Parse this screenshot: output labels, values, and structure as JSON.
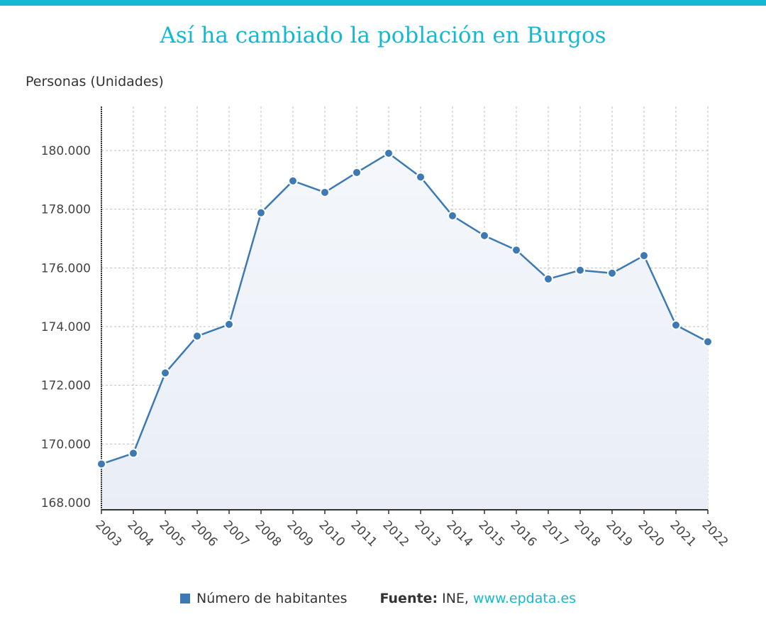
{
  "header": {
    "title": "Así ha cambiado la población en Burgos"
  },
  "colors": {
    "accent": "#15b8d3",
    "series": "#3d7ab4",
    "area_top": "#f4f7fb",
    "area_bottom": "#e9eef6",
    "grid": "#bdbdbd",
    "axis": "#333333"
  },
  "footer": {
    "legend_label": "Número de habitantes",
    "source_label": "Fuente:",
    "source_text": "INE,",
    "source_link": "www.epdata.es"
  },
  "chart_data": {
    "type": "area",
    "title": "Así ha cambiado la población en Burgos",
    "xlabel": "",
    "ylabel": "Personas (Unidades)",
    "x": [
      "2003",
      "2004",
      "2005",
      "2006",
      "2007",
      "2008",
      "2009",
      "2010",
      "2011",
      "2012",
      "2013",
      "2014",
      "2015",
      "2016",
      "2017",
      "2018",
      "2019",
      "2020",
      "2021",
      "2022"
    ],
    "series": [
      {
        "name": "Número de habitantes",
        "values": [
          169318,
          169683,
          172421,
          173676,
          174075,
          177879,
          178966,
          178574,
          179251,
          179906,
          179097,
          177776,
          177100,
          176608,
          175623,
          175921,
          175821,
          176418,
          174051,
          173483
        ]
      }
    ],
    "ylim": [
      168000,
      182000
    ],
    "yticks": [
      168000,
      170000,
      172000,
      174000,
      176000,
      178000,
      180000
    ],
    "ytick_labels": [
      "168.000",
      "170.000",
      "172.000",
      "174.000",
      "176.000",
      "178.000",
      "180.000"
    ],
    "grid": true,
    "legend": "bottom"
  }
}
